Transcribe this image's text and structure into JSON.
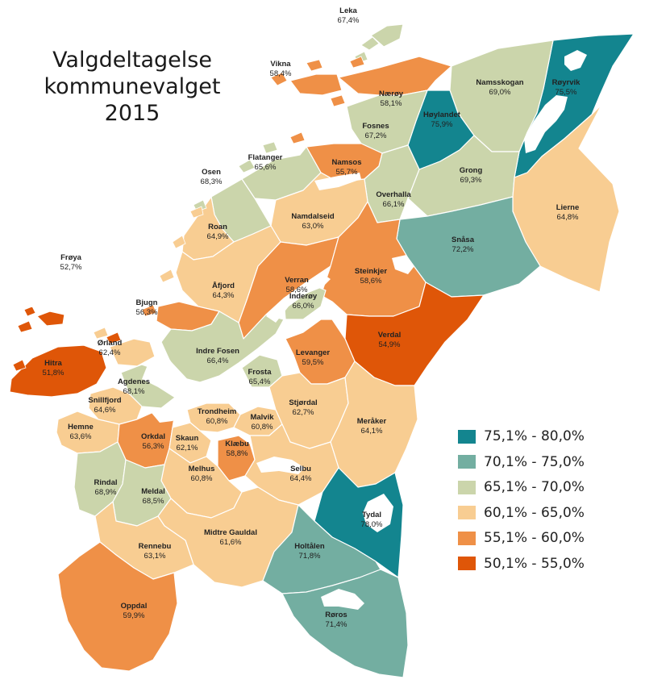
{
  "title": {
    "line1": "Valgdeltagelse",
    "line2": "kommunevalget",
    "line3": "2015"
  },
  "colors": {
    "c75": "#13858f",
    "c70": "#73aea1",
    "c65": "#cbd5ab",
    "c60": "#f8cd92",
    "c55": "#ef9047",
    "c50": "#df5608"
  },
  "legend": [
    {
      "label": "75,1% - 80,0%",
      "color_key": "c75"
    },
    {
      "label": "70,1% - 75,0%",
      "color_key": "c70"
    },
    {
      "label": "65,1% - 70,0%",
      "color_key": "c65"
    },
    {
      "label": "60,1% - 65,0%",
      "color_key": "c60"
    },
    {
      "label": "55,1% - 60,0%",
      "color_key": "c55"
    },
    {
      "label": "50,1% - 55,0%",
      "color_key": "c50"
    }
  ],
  "municipalities": [
    {
      "id": "leka",
      "name": "Leka",
      "value": "67,4%",
      "turnout": 67.4
    },
    {
      "id": "vikna",
      "name": "Vikna",
      "value": "58,4%",
      "turnout": 58.4
    },
    {
      "id": "naeroy",
      "name": "Nærøy",
      "value": "58,1%",
      "turnout": 58.1
    },
    {
      "id": "royrvik",
      "name": "Røyrvik",
      "value": "75,5%",
      "turnout": 75.5
    },
    {
      "id": "namsskogan",
      "name": "Namsskogan",
      "value": "69,0%",
      "turnout": 69.0
    },
    {
      "id": "hoylandet",
      "name": "Høylandet",
      "value": "75,9%",
      "turnout": 75.9
    },
    {
      "id": "fosnes",
      "name": "Fosnes",
      "value": "67,2%",
      "turnout": 67.2
    },
    {
      "id": "flatanger",
      "name": "Flatanger",
      "value": "65,6%",
      "turnout": 65.6
    },
    {
      "id": "namsos",
      "name": "Namsos",
      "value": "55,7%",
      "turnout": 55.7
    },
    {
      "id": "osen",
      "name": "Osen",
      "value": "68,3%",
      "turnout": 68.3
    },
    {
      "id": "grong",
      "name": "Grong",
      "value": "69,3%",
      "turnout": 69.3
    },
    {
      "id": "overhalla",
      "name": "Overhalla",
      "value": "66,1%",
      "turnout": 66.1
    },
    {
      "id": "lierne",
      "name": "Lierne",
      "value": "64,8%",
      "turnout": 64.8
    },
    {
      "id": "namdalseid",
      "name": "Namdalseid",
      "value": "63,0%",
      "turnout": 63.0
    },
    {
      "id": "roan",
      "name": "Roan",
      "value": "64,9%",
      "turnout": 64.9
    },
    {
      "id": "snasa",
      "name": "Snåsa",
      "value": "72,2%",
      "turnout": 72.2
    },
    {
      "id": "froya",
      "name": "Frøya",
      "value": "52,7%",
      "turnout": 52.7
    },
    {
      "id": "verran",
      "name": "Verran",
      "value": "58,6%",
      "turnout": 58.6
    },
    {
      "id": "steinkjer",
      "name": "Steinkjer",
      "value": "58,6%",
      "turnout": 58.6
    },
    {
      "id": "afjord",
      "name": "Åfjord",
      "value": "64,3%",
      "turnout": 64.3
    },
    {
      "id": "bjugn",
      "name": "Bjugn",
      "value": "56,3%",
      "turnout": 56.3
    },
    {
      "id": "inderoy",
      "name": "Inderøy",
      "value": "66,0%",
      "turnout": 66.0
    },
    {
      "id": "orland",
      "name": "Ørland",
      "value": "62,4%",
      "turnout": 62.4
    },
    {
      "id": "verdal",
      "name": "Verdal",
      "value": "54,9%",
      "turnout": 54.9
    },
    {
      "id": "hitra",
      "name": "Hitra",
      "value": "51,8%",
      "turnout": 51.8
    },
    {
      "id": "indrefosen",
      "name": "Indre Fosen",
      "value": "66,4%",
      "turnout": 66.4
    },
    {
      "id": "levanger",
      "name": "Levanger",
      "value": "59,5%",
      "turnout": 59.5
    },
    {
      "id": "agdenes",
      "name": "Agdenes",
      "value": "68,1%",
      "turnout": 68.1
    },
    {
      "id": "frosta",
      "name": "Frosta",
      "value": "65,4%",
      "turnout": 65.4
    },
    {
      "id": "snillfjord",
      "name": "Snillfjord",
      "value": "64,6%",
      "turnout": 64.6
    },
    {
      "id": "trondheim",
      "name": "Trondheim",
      "value": "60,8%",
      "turnout": 60.8
    },
    {
      "id": "stjordal",
      "name": "Stjørdal",
      "value": "62,7%",
      "turnout": 62.7
    },
    {
      "id": "malvik",
      "name": "Malvik",
      "value": "60,8%",
      "turnout": 60.8
    },
    {
      "id": "meraker",
      "name": "Meråker",
      "value": "64,1%",
      "turnout": 64.1
    },
    {
      "id": "hemne",
      "name": "Hemne",
      "value": "63,6%",
      "turnout": 63.6
    },
    {
      "id": "orkdal",
      "name": "Orkdal",
      "value": "56,3%",
      "turnout": 56.3
    },
    {
      "id": "skaun",
      "name": "Skaun",
      "value": "62,1%",
      "turnout": 62.1
    },
    {
      "id": "klaebu",
      "name": "Klæbu",
      "value": "58,8%",
      "turnout": 58.8
    },
    {
      "id": "melhus",
      "name": "Melhus",
      "value": "60,8%",
      "turnout": 60.8
    },
    {
      "id": "selbu",
      "name": "Selbu",
      "value": "64,4%",
      "turnout": 64.4
    },
    {
      "id": "rindal",
      "name": "Rindal",
      "value": "68,9%",
      "turnout": 68.9
    },
    {
      "id": "meldal",
      "name": "Meldal",
      "value": "68,5%",
      "turnout": 68.5
    },
    {
      "id": "tydal",
      "name": "Tydal",
      "value": "78,0%",
      "turnout": 78.0
    },
    {
      "id": "midtregauldal",
      "name": "Midtre Gauldal",
      "value": "61,6%",
      "turnout": 61.6
    },
    {
      "id": "rennebu",
      "name": "Rennebu",
      "value": "63,1%",
      "turnout": 63.1
    },
    {
      "id": "holtalen",
      "name": "Holtålen",
      "value": "71,8%",
      "turnout": 71.8
    },
    {
      "id": "oppdal",
      "name": "Oppdal",
      "value": "59,9%",
      "turnout": 59.9
    },
    {
      "id": "roros",
      "name": "Røros",
      "value": "71,4%",
      "turnout": 71.4
    }
  ]
}
